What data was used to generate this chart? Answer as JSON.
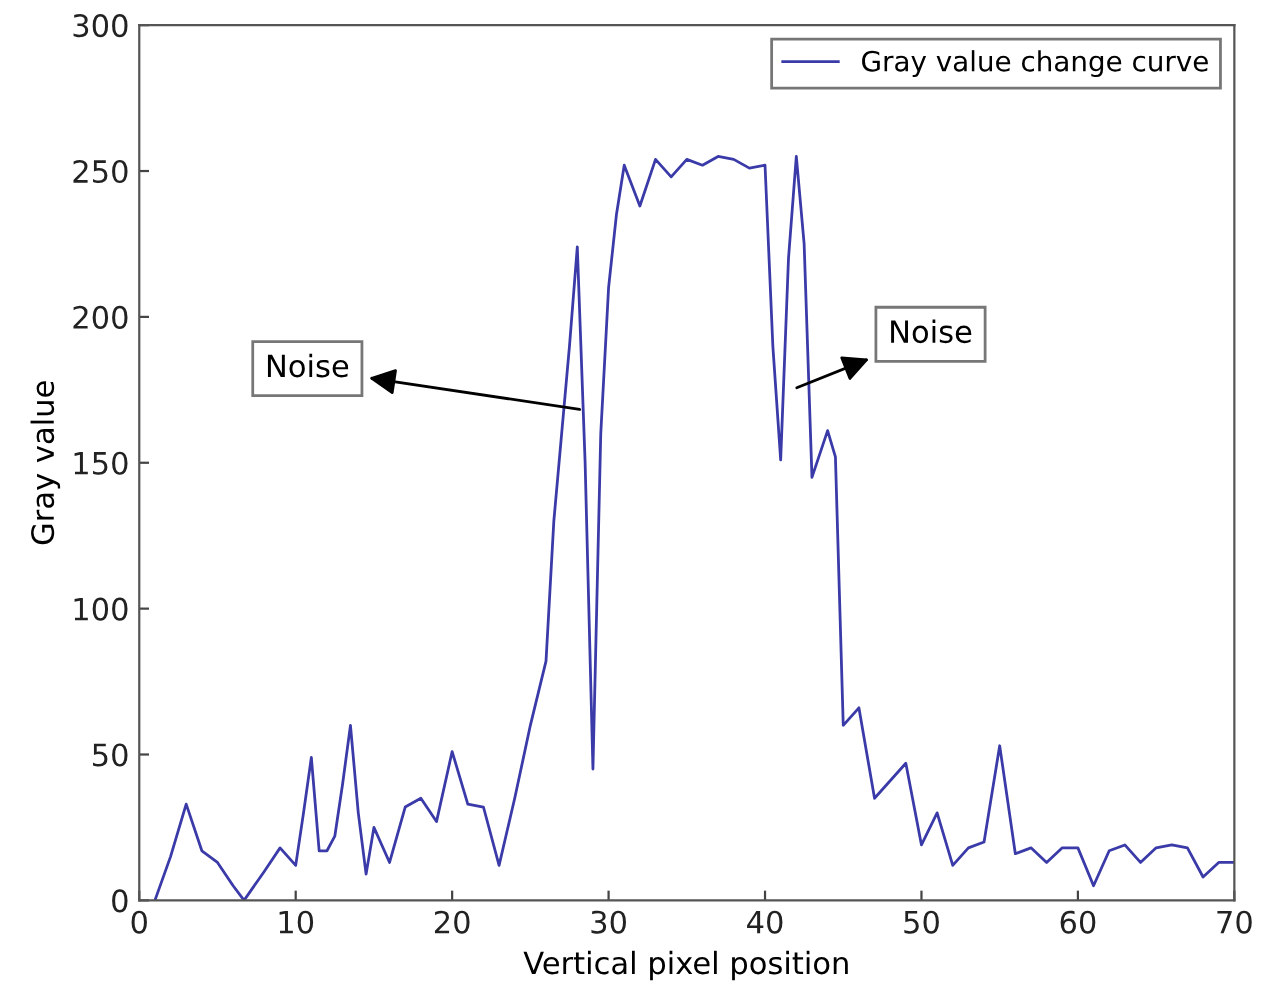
{
  "chart_data": {
    "type": "line",
    "xlabel": "Vertical pixel position",
    "ylabel": "Gray value",
    "xlim": [
      0,
      70
    ],
    "ylim": [
      0,
      300
    ],
    "xticks": [
      0,
      10,
      20,
      30,
      40,
      50,
      60,
      70
    ],
    "yticks": [
      0,
      50,
      100,
      150,
      200,
      250,
      300
    ],
    "grid": false,
    "legend": "top right",
    "marker": "none",
    "line_style": "solid",
    "series": [
      {
        "name": "Gray value change curve",
        "color": "#3a3aa8",
        "x": [
          1,
          2,
          3,
          4,
          5,
          6,
          6.7,
          8,
          9,
          10,
          10.5,
          11,
          11.5,
          12,
          12.5,
          13,
          13.5,
          14,
          14.5,
          15,
          16,
          17,
          18,
          19,
          20,
          21,
          22,
          23,
          24,
          25,
          26,
          26.5,
          27,
          27.5,
          28,
          28.5,
          29,
          29.5,
          30,
          30.5,
          31,
          32,
          33,
          34,
          35,
          36,
          37,
          38,
          39,
          40,
          40.5,
          41,
          41.5,
          42,
          42.5,
          43,
          44,
          44.5,
          45,
          46,
          47,
          48,
          49,
          50,
          51,
          52,
          53,
          54,
          55,
          56,
          57,
          58,
          59,
          60,
          61,
          62,
          63,
          64,
          65,
          66,
          67,
          68,
          69,
          70
        ],
        "values": [
          0,
          15,
          33,
          17,
          13,
          5,
          0,
          10,
          18,
          12,
          30,
          49,
          17,
          17,
          22,
          40,
          60,
          30,
          9,
          25,
          13,
          32,
          35,
          27,
          51,
          33,
          32,
          12,
          35,
          60,
          82,
          130,
          160,
          190,
          224,
          150,
          45,
          160,
          210,
          235,
          252,
          238,
          254,
          248,
          254,
          252,
          255,
          254,
          251,
          252,
          190,
          151,
          220,
          255,
          225,
          145,
          161,
          152,
          60,
          66,
          35,
          41,
          47,
          19,
          30,
          12,
          18,
          20,
          53,
          16,
          18,
          13,
          18,
          18,
          5,
          17,
          19,
          13,
          18,
          19,
          18,
          8,
          13,
          13
        ]
      }
    ],
    "annotations": [
      {
        "text": "Noise",
        "x": 28.5,
        "y": 168
      },
      {
        "text": "Noise",
        "x": 41.7,
        "y": 175
      }
    ]
  }
}
